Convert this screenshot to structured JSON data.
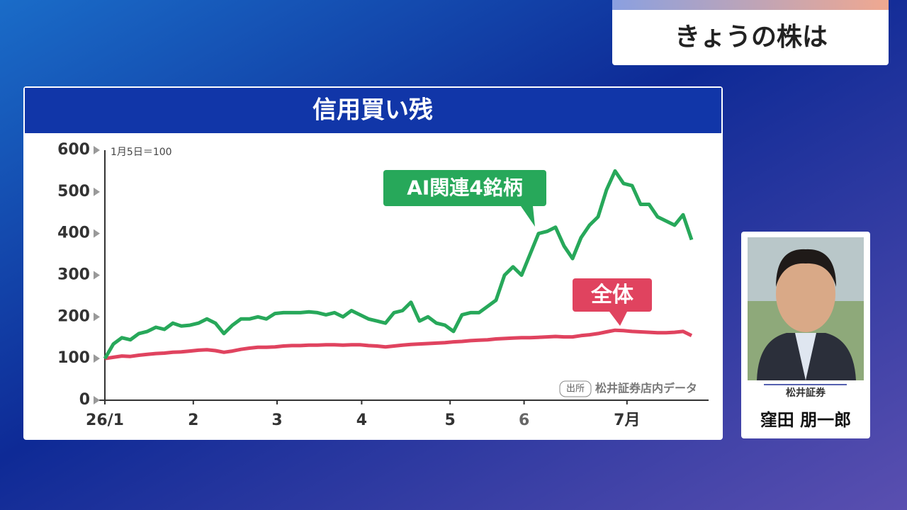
{
  "header_title": "きょうの株は",
  "presenter": {
    "company": "松井証券",
    "name": "窪田 朋一郎"
  },
  "chart_data": {
    "type": "line",
    "title": "信用買い残",
    "note": "1月5日＝100",
    "source_tag": "出所",
    "source": "松井証券店内データ",
    "x": [
      0,
      1,
      2,
      3,
      4,
      5,
      6,
      7,
      8,
      9,
      10,
      11,
      12,
      13,
      14,
      15,
      16,
      17,
      18,
      19,
      20,
      21,
      22,
      23,
      24,
      25,
      26,
      27,
      28,
      29,
      30,
      31,
      32,
      33,
      34,
      35,
      36,
      37,
      38,
      39,
      40,
      41,
      42,
      43,
      44,
      45,
      46,
      47,
      48,
      49,
      50,
      51,
      52,
      53,
      54,
      55,
      56,
      57,
      58,
      59,
      60,
      61,
      62,
      63,
      64,
      65,
      66,
      67,
      68,
      69
    ],
    "xlim": [
      0,
      71
    ],
    "xticks": [
      {
        "value": 0,
        "label": "26/1"
      },
      {
        "value": 10.4,
        "label": "2"
      },
      {
        "value": 20.25,
        "label": "3"
      },
      {
        "value": 30.2,
        "label": "4"
      },
      {
        "value": 40.6,
        "label": "5"
      },
      {
        "value": 49.3,
        "label": "6"
      },
      {
        "value": 61.4,
        "label": "7月"
      }
    ],
    "ylim": [
      0,
      600
    ],
    "yticks": [
      0,
      100,
      200,
      300,
      400,
      500,
      600
    ],
    "series": [
      {
        "name": "AI関連4銘柄",
        "color": "#27a85a",
        "values": [
          100,
          135,
          150,
          145,
          160,
          165,
          175,
          170,
          185,
          178,
          180,
          185,
          195,
          185,
          160,
          180,
          195,
          195,
          200,
          195,
          208,
          210,
          210,
          210,
          212,
          210,
          205,
          210,
          200,
          215,
          205,
          195,
          190,
          185,
          210,
          215,
          235,
          190,
          200,
          185,
          180,
          165,
          205,
          210,
          210,
          225,
          240,
          300,
          320,
          300,
          350,
          400,
          405,
          415,
          370,
          340,
          390,
          420,
          440,
          505,
          550,
          520,
          515,
          470,
          470,
          440,
          430,
          420,
          445,
          385
        ]
      },
      {
        "name": "全体",
        "color": "#e0435f",
        "values": [
          100,
          103,
          106,
          105,
          108,
          110,
          112,
          113,
          115,
          116,
          118,
          120,
          121,
          119,
          115,
          118,
          122,
          125,
          127,
          127,
          128,
          130,
          131,
          131,
          132,
          132,
          133,
          133,
          132,
          133,
          133,
          131,
          130,
          128,
          130,
          132,
          134,
          135,
          136,
          137,
          138,
          140,
          141,
          143,
          144,
          145,
          147,
          148,
          149,
          150,
          150,
          151,
          152,
          153,
          152,
          152,
          155,
          157,
          160,
          164,
          168,
          167,
          165,
          164,
          163,
          162,
          162,
          163,
          165,
          155
        ]
      }
    ]
  }
}
